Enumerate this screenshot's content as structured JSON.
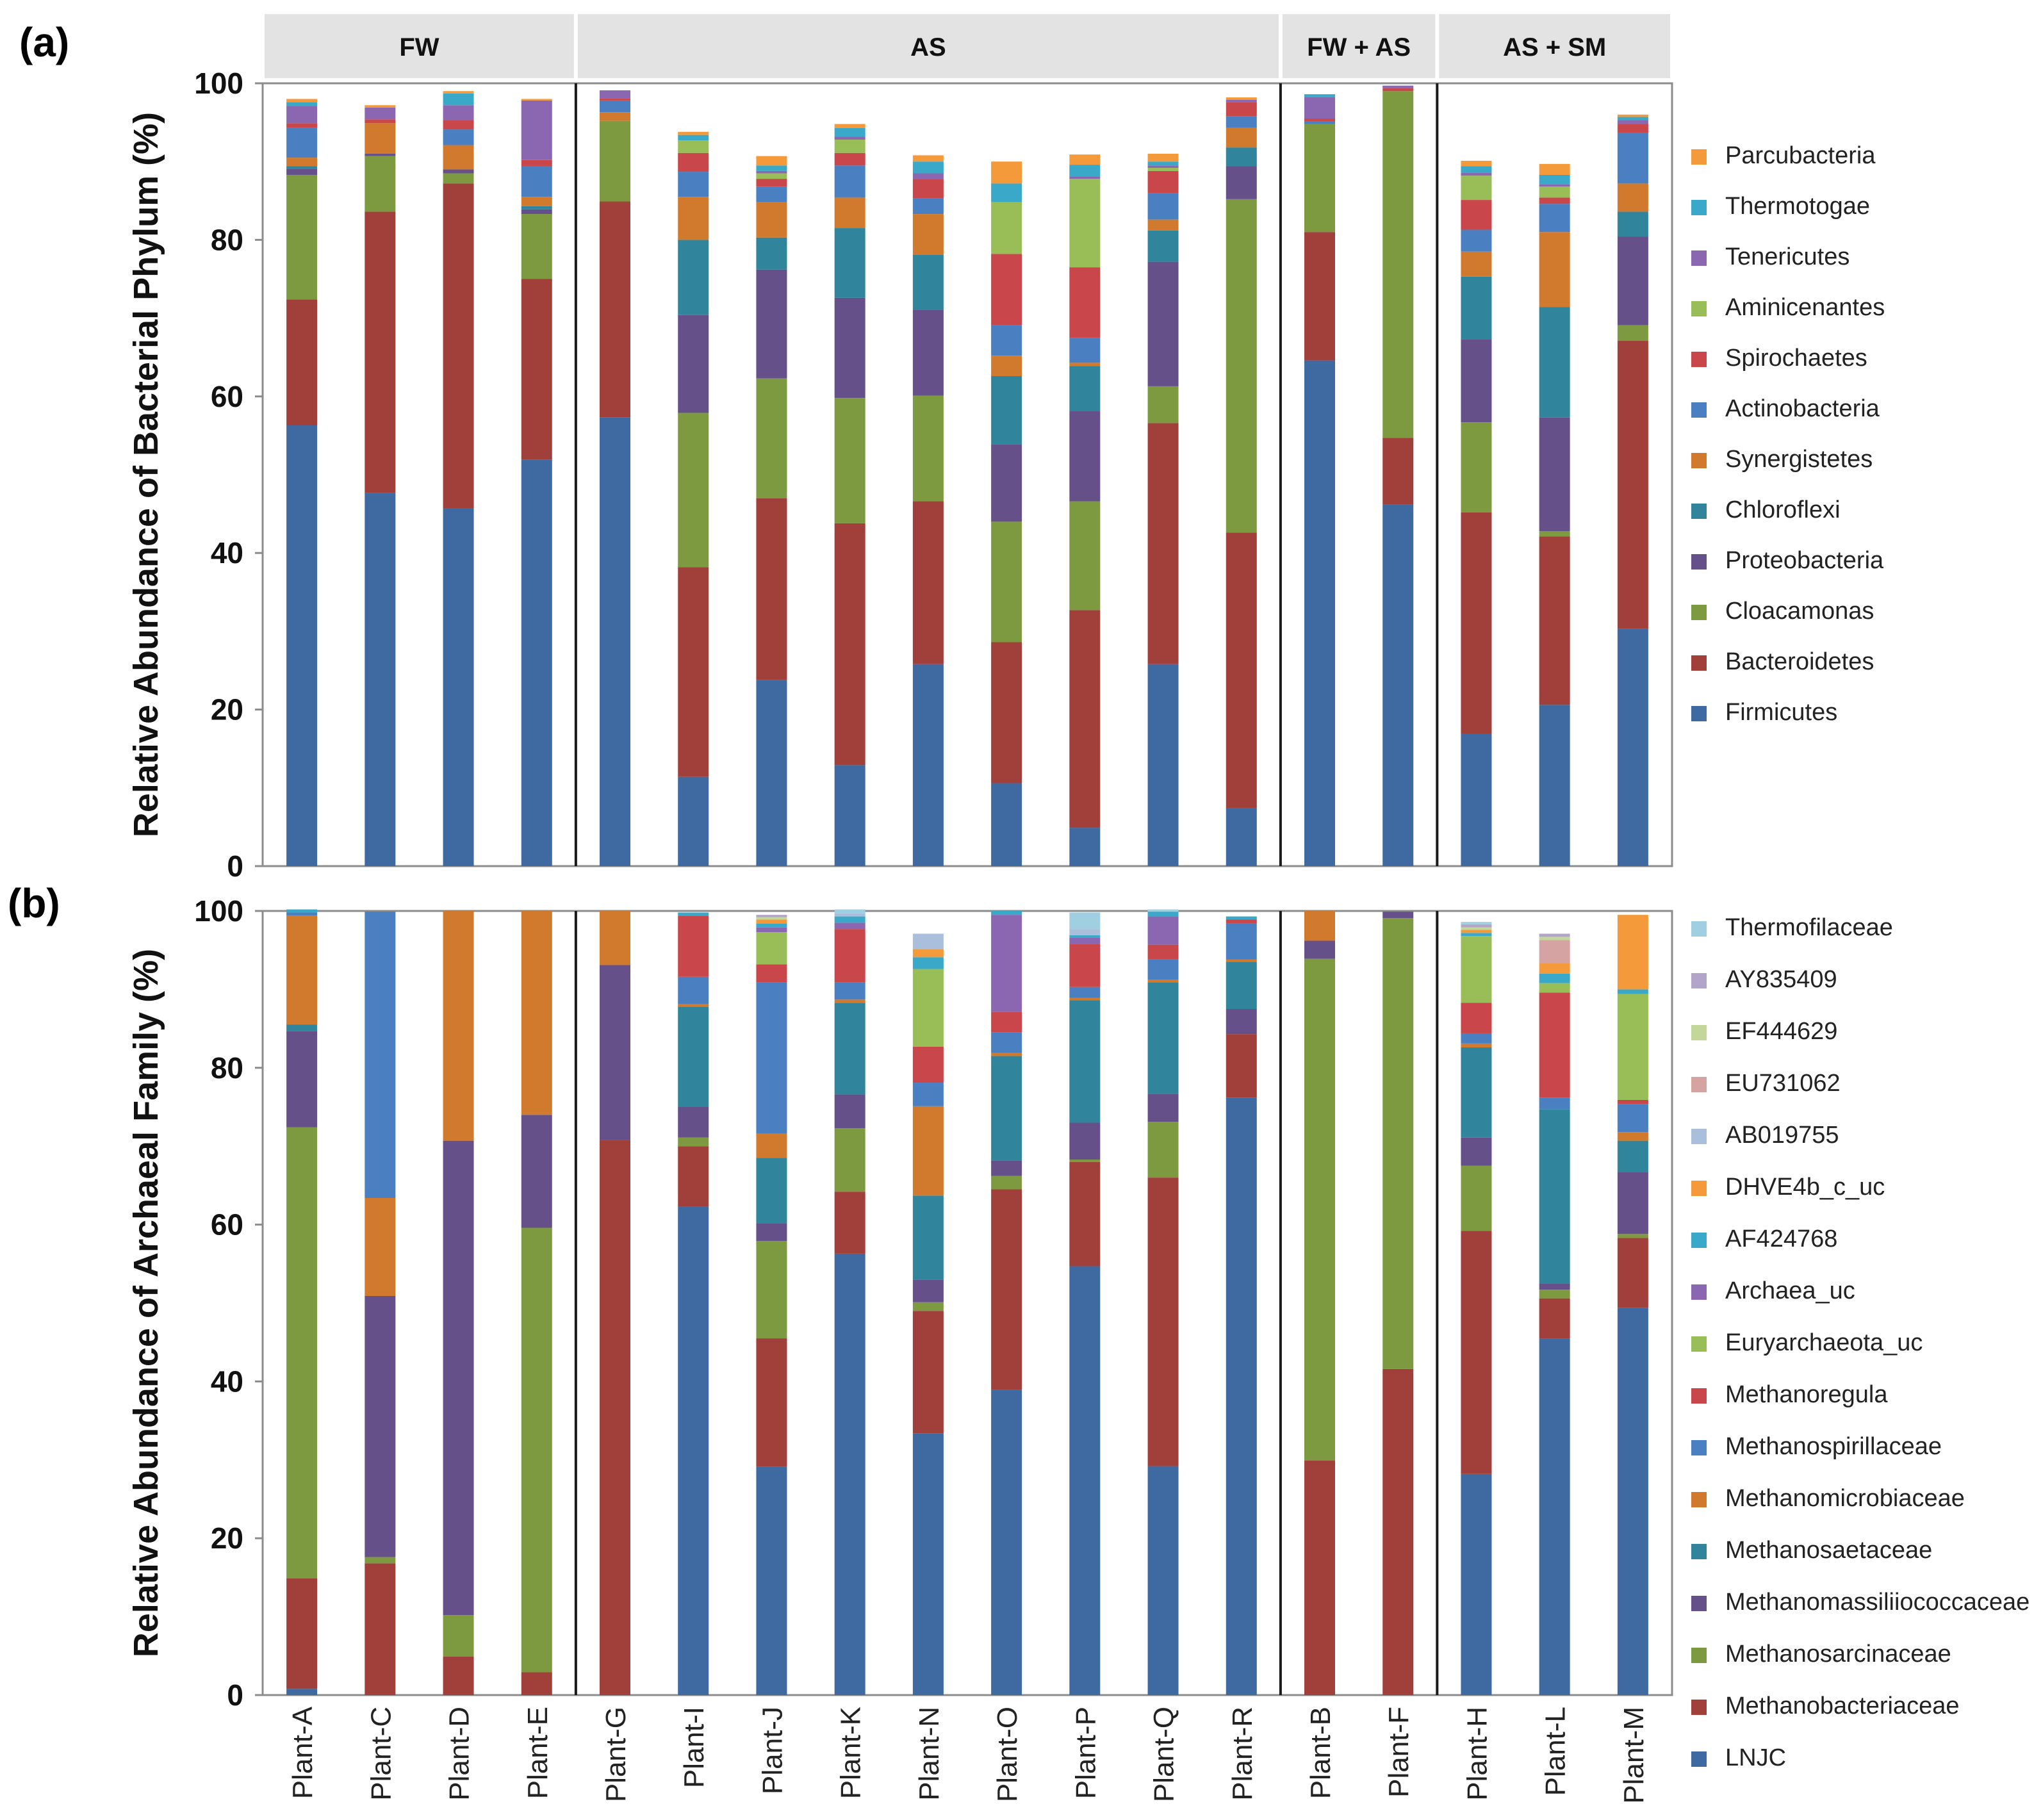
{
  "figure": {
    "panel_labels": [
      "(a)",
      "(b)"
    ],
    "groups": [
      {
        "label": "FW",
        "count": 4
      },
      {
        "label": "AS",
        "count": 9
      },
      {
        "label": "FW + AS",
        "count": 2
      },
      {
        "label": "AS + SM",
        "count": 3
      }
    ]
  },
  "chart_data": [
    {
      "type": "bar",
      "stacked": true,
      "panel": "(a)",
      "ylabel": "Relative Abundance of Bacterial Phylum (%)",
      "xlabel": "",
      "ylim": [
        0,
        100
      ],
      "yticks": [
        0,
        20,
        40,
        60,
        80,
        100
      ],
      "grid": false,
      "legend_position": "right",
      "categories": [
        "Plant-A",
        "Plant-C",
        "Plant-D",
        "Plant-E",
        "Plant-G",
        "Plant-I",
        "Plant-J",
        "Plant-K",
        "Plant-N",
        "Plant-O",
        "Plant-P",
        "Plant-Q",
        "Plant-R",
        "Plant-B",
        "Plant-F",
        "Plant-H",
        "Plant-L",
        "Plant-M"
      ],
      "series": [
        {
          "name": "Firmicutes",
          "color": "#3e6aa1",
          "values": [
            56.3,
            47.7,
            45.7,
            51.9,
            57.3,
            11.4,
            23.8,
            12.9,
            25.8,
            10.6,
            4.9,
            25.8,
            7.4,
            64.6,
            46.2,
            16.9,
            20.6,
            30.3
          ]
        },
        {
          "name": "Bacteroidetes",
          "color": "#a13f3a",
          "values": [
            16.1,
            35.9,
            41.5,
            23.1,
            27.6,
            26.8,
            23.2,
            30.9,
            20.8,
            18.0,
            27.8,
            30.8,
            35.2,
            16.4,
            8.5,
            28.3,
            21.5,
            36.8
          ]
        },
        {
          "name": "Cloacamonas",
          "color": "#7d9a40",
          "values": [
            15.9,
            7.1,
            1.3,
            8.3,
            10.3,
            19.7,
            15.3,
            16.0,
            13.5,
            15.4,
            13.9,
            4.7,
            42.6,
            13.8,
            44.3,
            11.5,
            0.7,
            2.0
          ]
        },
        {
          "name": "Proteobacteria",
          "color": "#665089",
          "values": [
            0.8,
            0.3,
            0.5,
            0.6,
            0,
            12.5,
            13.9,
            12.8,
            11.0,
            9.9,
            11.5,
            15.9,
            4.2,
            0,
            0,
            10.6,
            14.5,
            11.3
          ]
        },
        {
          "name": "Chloroflexi",
          "color": "#30849b",
          "values": [
            0.3,
            0,
            0,
            0.4,
            0,
            9.6,
            4.1,
            8.9,
            7.0,
            8.7,
            5.8,
            4.0,
            2.4,
            0,
            0,
            8.0,
            14.1,
            3.2
          ]
        },
        {
          "name": "Synergistetes",
          "color": "#d17a2e",
          "values": [
            1.1,
            3.9,
            3.1,
            1.2,
            1.1,
            5.5,
            4.5,
            3.9,
            5.2,
            2.6,
            0.4,
            1.4,
            2.5,
            0,
            0,
            3.2,
            9.6,
            3.6
          ]
        },
        {
          "name": "Actinobacteria",
          "color": "#4a7fc1",
          "values": [
            3.8,
            0,
            2.0,
            3.9,
            1.5,
            3.2,
            2.0,
            4.1,
            2.0,
            3.9,
            3.2,
            3.4,
            1.5,
            0.3,
            0,
            2.8,
            3.6,
            6.5
          ]
        },
        {
          "name": "Spirochaetes",
          "color": "#c9474a",
          "values": [
            0.6,
            0.5,
            1.2,
            0.8,
            0.3,
            2.4,
            1.0,
            1.6,
            2.5,
            9.1,
            9.0,
            2.8,
            1.8,
            0.4,
            0.4,
            3.8,
            0.8,
            1.1
          ]
        },
        {
          "name": "Aminicenantes",
          "color": "#99bd57",
          "values": [
            0,
            0,
            0,
            0,
            0,
            1.6,
            0.7,
            1.7,
            0,
            6.6,
            11.3,
            0.4,
            0,
            0,
            0,
            3.1,
            1.4,
            0
          ]
        },
        {
          "name": "Tenericutes",
          "color": "#8a67b0",
          "values": [
            2.2,
            1.5,
            1.9,
            7.6,
            1.0,
            0,
            0.3,
            0.4,
            0.7,
            0,
            0.3,
            0.3,
            0.3,
            2.7,
            0.3,
            0.4,
            0.3,
            0.5
          ]
        },
        {
          "name": "Thermotogae",
          "color": "#3aa8c9",
          "values": [
            0.5,
            0,
            1.5,
            0,
            0,
            0.7,
            0.7,
            1.1,
            1.5,
            2.4,
            1.5,
            0.5,
            0,
            0.4,
            0,
            0.8,
            1.2,
            0.4
          ]
        },
        {
          "name": "Parcubacteria",
          "color": "#f59a3b",
          "values": [
            0.4,
            0.3,
            0.3,
            0.2,
            0,
            0.4,
            1.2,
            0.5,
            0.8,
            2.8,
            1.3,
            1.0,
            0.3,
            0,
            0,
            0.7,
            1.4,
            0.3
          ]
        }
      ]
    },
    {
      "type": "bar",
      "stacked": true,
      "panel": "(b)",
      "ylabel": "Relative Abundance of Archaeal Family  (%)",
      "xlabel": "",
      "ylim": [
        0,
        100
      ],
      "yticks": [
        0,
        20,
        40,
        60,
        80,
        100
      ],
      "grid": false,
      "legend_position": "right",
      "categories": [
        "Plant-A",
        "Plant-C",
        "Plant-D",
        "Plant-E",
        "Plant-G",
        "Plant-I",
        "Plant-J",
        "Plant-K",
        "Plant-N",
        "Plant-O",
        "Plant-P",
        "Plant-Q",
        "Plant-R",
        "Plant-B",
        "Plant-F",
        "Plant-H",
        "Plant-L",
        "Plant-M"
      ],
      "series": [
        {
          "name": "LNJC",
          "color": "#3e6aa1",
          "values": [
            0.8,
            0,
            0,
            0,
            0,
            62.3,
            29.1,
            56.3,
            33.4,
            38.9,
            54.7,
            29.2,
            76.2,
            0,
            0,
            28.2,
            45.5,
            49.4
          ]
        },
        {
          "name": "Methanobacteriaceae",
          "color": "#a13f3a",
          "values": [
            14.1,
            16.8,
            4.9,
            2.9,
            70.8,
            7.7,
            16.4,
            7.9,
            15.6,
            25.6,
            13.3,
            36.8,
            8.1,
            29.9,
            41.6,
            31.0,
            5.1,
            8.9
          ]
        },
        {
          "name": "Methanosarcinaceae",
          "color": "#7d9a40",
          "values": [
            57.5,
            0.8,
            5.3,
            56.7,
            0,
            1.1,
            12.4,
            8.1,
            1.1,
            1.7,
            0.3,
            7.1,
            0,
            64.0,
            57.5,
            8.3,
            1.1,
            0.5
          ]
        },
        {
          "name": "Methanomassiliiococcaceae",
          "color": "#665089",
          "values": [
            12.3,
            33.3,
            60.5,
            14.4,
            22.3,
            3.9,
            2.3,
            4.3,
            2.9,
            2.0,
            4.7,
            3.6,
            3.2,
            2.3,
            0.8,
            3.6,
            0.8,
            7.9
          ]
        },
        {
          "name": "Methanosaetaceae",
          "color": "#30849b",
          "values": [
            0.8,
            0,
            0,
            0,
            0,
            12.8,
            8.3,
            11.7,
            10.7,
            13.3,
            15.6,
            14.2,
            6.0,
            0,
            0,
            11.5,
            22.2,
            4.0
          ]
        },
        {
          "name": "Methanomicrobiaceae",
          "color": "#d17a2e",
          "values": [
            13.9,
            12.5,
            29.3,
            26.0,
            6.9,
            0.3,
            3.1,
            0.4,
            11.4,
            0.4,
            0.3,
            0.3,
            0.3,
            3.8,
            0,
            0.5,
            0,
            1.1
          ]
        },
        {
          "name": "Methanospirillaceae",
          "color": "#4a7fc1",
          "values": [
            0.4,
            36.5,
            0,
            0,
            0,
            3.5,
            19.3,
            2.2,
            3.0,
            2.6,
            1.4,
            2.6,
            4.6,
            0,
            0,
            1.3,
            1.5,
            3.6
          ]
        },
        {
          "name": "Methanoregula",
          "color": "#c9474a",
          "values": [
            0,
            0,
            0,
            0,
            0,
            7.8,
            2.3,
            6.8,
            4.6,
            2.6,
            5.5,
            1.9,
            0.5,
            0,
            0,
            3.9,
            13.4,
            0.5
          ]
        },
        {
          "name": "Euryarchaeota_uc",
          "color": "#99bd57",
          "values": [
            0,
            0,
            0,
            0,
            0,
            0,
            4.1,
            0,
            9.9,
            0,
            0,
            0,
            0,
            0,
            0,
            8.5,
            1.2,
            13.5
          ]
        },
        {
          "name": "Archaea_uc",
          "color": "#8a67b0",
          "values": [
            0,
            0,
            0,
            0,
            0,
            0,
            0.6,
            0.8,
            0,
            12.4,
            0.8,
            3.6,
            0,
            0,
            0,
            0,
            0,
            0
          ]
        },
        {
          "name": "AF424768",
          "color": "#3aa8c9",
          "values": [
            0.4,
            0,
            0,
            0,
            0,
            0.4,
            0.5,
            0.8,
            1.5,
            0.5,
            0.3,
            0.6,
            0.4,
            0,
            0,
            0.4,
            1.2,
            0.6
          ]
        },
        {
          "name": "DHVE4b_c_uc",
          "color": "#f59a3b",
          "values": [
            0,
            0,
            0,
            0,
            0,
            0,
            0.5,
            0,
            1.0,
            0,
            0,
            0,
            0,
            0,
            0,
            0.4,
            1.3,
            9.5
          ]
        },
        {
          "name": "AB019755",
          "color": "#a9bfdc",
          "values": [
            0,
            0,
            0,
            0,
            0,
            0,
            0,
            0.4,
            2.0,
            0,
            0.8,
            0,
            0,
            0,
            0,
            0,
            0,
            0
          ]
        },
        {
          "name": "EU731062",
          "color": "#d6a3a3",
          "values": [
            0,
            0,
            0,
            0,
            0,
            0,
            0,
            0,
            0,
            0,
            0,
            0,
            0,
            0,
            0,
            0,
            3.0,
            0
          ]
        },
        {
          "name": "EF444629",
          "color": "#c3d79b",
          "values": [
            0,
            0,
            0,
            0,
            0,
            0,
            0.3,
            0,
            0,
            0,
            0,
            0,
            0,
            0,
            0,
            0.3,
            0.4,
            0
          ]
        },
        {
          "name": "AY835409",
          "color": "#b3a5c9",
          "values": [
            0,
            0,
            0,
            0,
            0,
            0,
            0.3,
            0,
            0,
            0,
            0,
            0,
            0,
            0,
            0,
            0.4,
            0.4,
            0
          ]
        },
        {
          "name": "Thermofilaceae",
          "color": "#9fcfe0",
          "values": [
            0,
            0,
            0,
            0,
            0,
            0,
            0,
            0.5,
            0,
            0,
            2.1,
            0.3,
            0,
            0,
            0,
            0.3,
            0,
            0
          ]
        }
      ]
    }
  ]
}
